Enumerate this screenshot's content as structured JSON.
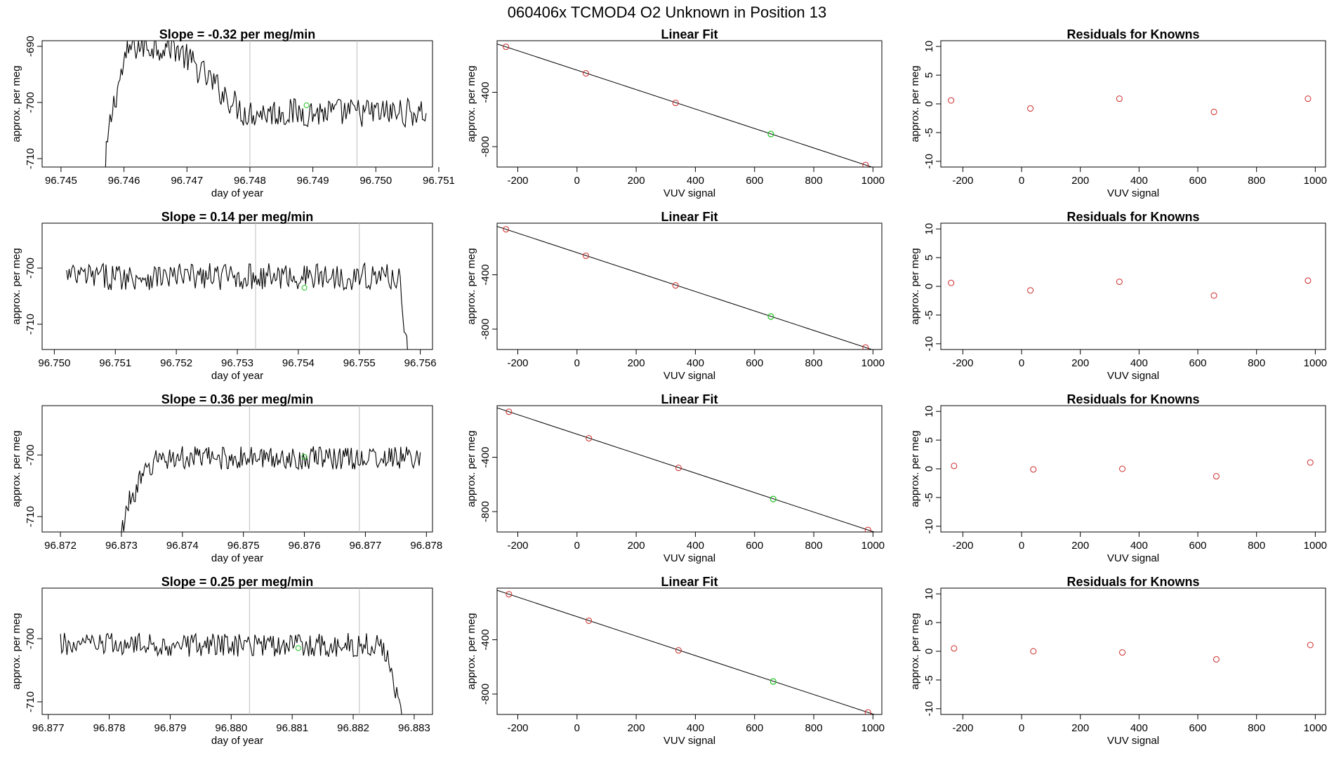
{
  "figure": {
    "title": "060406x      TCMOD4    O2 Unknown in Position  13"
  },
  "colors": {
    "line": "#000000",
    "known": "#cd2626",
    "unknown": "#1fc21f",
    "vline": "#bebebe"
  },
  "chart_data": [
    {
      "type": "line",
      "row": 1,
      "col": 1,
      "title": "Slope =  -0.32  per meg/min",
      "xlabel": "day of year",
      "ylabel": "approx. per meg",
      "xlim": [
        96.7447,
        96.7509
      ],
      "ylim": [
        -711.5,
        -689
      ],
      "xticks": [
        "96.745",
        "96.746",
        "96.747",
        "96.748",
        "96.749",
        "96.750",
        "96.751"
      ],
      "yticks": [
        "-710",
        "-700",
        "-690"
      ],
      "window_lines": [
        96.748,
        96.7497
      ],
      "unknown_point": {
        "x": 96.7489,
        "y": -700.5
      },
      "trace": {
        "x_start": 96.7457,
        "x_end": 96.7508,
        "rise_end": 96.7461,
        "level_start": -715,
        "plateau": -690,
        "step_start": 96.7468,
        "step_end": 96.7479,
        "level": -701.8,
        "noise": 2.6
      }
    },
    {
      "type": "scatter",
      "row": 1,
      "col": 2,
      "title": "Linear Fit",
      "xlabel": "VUV signal",
      "ylabel": "approx. per meg",
      "xlim": [
        -270,
        1030
      ],
      "ylim": [
        -950,
        -20
      ],
      "xticks": [
        "-200",
        "0",
        "200",
        "400",
        "600",
        "800",
        "1000"
      ],
      "yticks": [
        "-800",
        "-400"
      ],
      "knowns": [
        {
          "x": -240,
          "y": -65
        },
        {
          "x": 30,
          "y": -260
        },
        {
          "x": 333,
          "y": -478
        },
        {
          "x": 975,
          "y": -935
        }
      ],
      "unknown": {
        "x": 655,
        "y": -707
      },
      "fit": {
        "x0": -240,
        "y0": -65,
        "x1": 975,
        "y1": -935
      }
    },
    {
      "type": "scatter",
      "row": 1,
      "col": 3,
      "title": "Residuals for Knowns",
      "xlabel": "VUV signal",
      "ylabel": "approx. per meg",
      "xlim": [
        -275,
        1035
      ],
      "ylim": [
        -11,
        11
      ],
      "xticks": [
        "-200",
        "0",
        "200",
        "400",
        "600",
        "800",
        "1000"
      ],
      "yticks": [
        "-10",
        "-5",
        "0",
        "5",
        "10"
      ],
      "points": [
        {
          "x": -240,
          "y": 0.6
        },
        {
          "x": 30,
          "y": -0.8
        },
        {
          "x": 333,
          "y": 0.9
        },
        {
          "x": 655,
          "y": -1.4
        },
        {
          "x": 975,
          "y": 0.9
        }
      ]
    },
    {
      "type": "line",
      "row": 2,
      "col": 1,
      "title": "Slope =  0.14  per meg/min",
      "xlabel": "day of year",
      "ylabel": "approx. per meg",
      "xlim": [
        96.7498,
        96.7562
      ],
      "ylim": [
        -714.5,
        -692
      ],
      "xticks": [
        "96.750",
        "96.751",
        "96.752",
        "96.753",
        "96.754",
        "96.755",
        "96.756"
      ],
      "yticks": [
        "-710",
        "-700"
      ],
      "window_lines": [
        96.7533,
        96.755
      ],
      "unknown_point": {
        "x": 96.7541,
        "y": -703.5
      },
      "trace": {
        "x_start": 96.7502,
        "x_end": 96.7558,
        "level": -701.5,
        "noise": 2.4,
        "drop_start": 96.75565,
        "drop_end": -715
      }
    },
    {
      "type": "scatter",
      "row": 2,
      "col": 2,
      "title": "Linear Fit",
      "xlabel": "VUV signal",
      "ylabel": "approx. per meg",
      "xlim": [
        -270,
        1030
      ],
      "ylim": [
        -950,
        -20
      ],
      "xticks": [
        "-200",
        "0",
        "200",
        "400",
        "600",
        "800",
        "1000"
      ],
      "yticks": [
        "-800",
        "-400"
      ],
      "knowns": [
        {
          "x": -240,
          "y": -65
        },
        {
          "x": 30,
          "y": -260
        },
        {
          "x": 333,
          "y": -478
        },
        {
          "x": 975,
          "y": -935
        }
      ],
      "unknown": {
        "x": 655,
        "y": -707
      },
      "fit": {
        "x0": -240,
        "y0": -65,
        "x1": 975,
        "y1": -935
      }
    },
    {
      "type": "scatter",
      "row": 2,
      "col": 3,
      "title": "Residuals for Knowns",
      "xlabel": "VUV signal",
      "ylabel": "approx. per meg",
      "xlim": [
        -275,
        1035
      ],
      "ylim": [
        -11,
        11
      ],
      "xticks": [
        "-200",
        "0",
        "200",
        "400",
        "600",
        "800",
        "1000"
      ],
      "yticks": [
        "-10",
        "-5",
        "0",
        "5",
        "10"
      ],
      "points": [
        {
          "x": -240,
          "y": 0.6
        },
        {
          "x": 30,
          "y": -0.7
        },
        {
          "x": 333,
          "y": 0.8
        },
        {
          "x": 655,
          "y": -1.6
        },
        {
          "x": 975,
          "y": 1.0
        }
      ]
    },
    {
      "type": "line",
      "row": 3,
      "col": 1,
      "title": "Slope =  0.36  per meg/min",
      "xlabel": "day of year",
      "ylabel": "approx. per meg",
      "xlim": [
        96.8717,
        96.8781
      ],
      "ylim": [
        -712.5,
        -692
      ],
      "xticks": [
        "96.872",
        "96.873",
        "96.874",
        "96.875",
        "96.876",
        "96.877",
        "96.878"
      ],
      "yticks": [
        "-710",
        "-700"
      ],
      "window_lines": [
        96.8751,
        96.8769
      ],
      "unknown_point": {
        "x": 96.876,
        "y": -700.3
      },
      "trace": {
        "x_start": 96.873,
        "x_end": 96.8779,
        "rise_end": 96.8736,
        "level_start": -714,
        "level": -700.5,
        "noise": 1.9
      }
    },
    {
      "type": "scatter",
      "row": 3,
      "col": 2,
      "title": "Linear Fit",
      "xlabel": "VUV signal",
      "ylabel": "approx. per meg",
      "xlim": [
        -270,
        1030
      ],
      "ylim": [
        -950,
        -20
      ],
      "xticks": [
        "-200",
        "0",
        "200",
        "400",
        "600",
        "800",
        "1000"
      ],
      "yticks": [
        "-800",
        "-400"
      ],
      "knowns": [
        {
          "x": -230,
          "y": -65
        },
        {
          "x": 40,
          "y": -260
        },
        {
          "x": 343,
          "y": -478
        },
        {
          "x": 983,
          "y": -935
        }
      ],
      "unknown": {
        "x": 663,
        "y": -707
      },
      "fit": {
        "x0": -230,
        "y0": -65,
        "x1": 983,
        "y1": -935
      }
    },
    {
      "type": "scatter",
      "row": 3,
      "col": 3,
      "title": "Residuals for Knowns",
      "xlabel": "VUV signal",
      "ylabel": "approx. per meg",
      "xlim": [
        -275,
        1035
      ],
      "ylim": [
        -11,
        11
      ],
      "xticks": [
        "-200",
        "0",
        "200",
        "400",
        "600",
        "800",
        "1000"
      ],
      "yticks": [
        "-10",
        "-5",
        "0",
        "5",
        "10"
      ],
      "points": [
        {
          "x": -230,
          "y": 0.5
        },
        {
          "x": 40,
          "y": -0.1
        },
        {
          "x": 343,
          "y": 0.0
        },
        {
          "x": 663,
          "y": -1.3
        },
        {
          "x": 983,
          "y": 1.1
        }
      ]
    },
    {
      "type": "line",
      "row": 4,
      "col": 1,
      "title": "Slope =  0.25  per meg/min",
      "xlabel": "day of year",
      "ylabel": "approx. per meg",
      "xlim": [
        96.8769,
        96.8833
      ],
      "ylim": [
        -712,
        -692
      ],
      "xticks": [
        "96.877",
        "96.878",
        "96.879",
        "96.880",
        "96.881",
        "96.882",
        "96.883"
      ],
      "yticks": [
        "-710",
        "-700"
      ],
      "window_lines": [
        96.8803,
        96.8821
      ],
      "unknown_point": {
        "x": 96.8811,
        "y": -701.5
      },
      "trace": {
        "x_start": 96.8772,
        "x_end": 96.8828,
        "level": -701.0,
        "noise": 1.9,
        "drop_start": 96.8825,
        "drop_end": -712
      }
    },
    {
      "type": "scatter",
      "row": 4,
      "col": 2,
      "title": "Linear Fit",
      "xlabel": "VUV signal",
      "ylabel": "approx. per meg",
      "xlim": [
        -270,
        1030
      ],
      "ylim": [
        -950,
        -20
      ],
      "xticks": [
        "-200",
        "0",
        "200",
        "400",
        "600",
        "800",
        "1000"
      ],
      "yticks": [
        "-800",
        "-400"
      ],
      "knowns": [
        {
          "x": -230,
          "y": -65
        },
        {
          "x": 40,
          "y": -260
        },
        {
          "x": 343,
          "y": -478
        },
        {
          "x": 983,
          "y": -935
        }
      ],
      "unknown": {
        "x": 663,
        "y": -707
      },
      "fit": {
        "x0": -230,
        "y0": -65,
        "x1": 983,
        "y1": -935
      }
    },
    {
      "type": "scatter",
      "row": 4,
      "col": 3,
      "title": "Residuals for Knowns",
      "xlabel": "VUV signal",
      "ylabel": "approx. per meg",
      "xlim": [
        -275,
        1035
      ],
      "ylim": [
        -11,
        11
      ],
      "xticks": [
        "-200",
        "0",
        "200",
        "400",
        "600",
        "800",
        "1000"
      ],
      "yticks": [
        "-10",
        "-5",
        "0",
        "5",
        "10"
      ],
      "points": [
        {
          "x": -230,
          "y": 0.5
        },
        {
          "x": 40,
          "y": 0.0
        },
        {
          "x": 343,
          "y": -0.2
        },
        {
          "x": 663,
          "y": -1.4
        },
        {
          "x": 983,
          "y": 1.1
        }
      ]
    }
  ]
}
